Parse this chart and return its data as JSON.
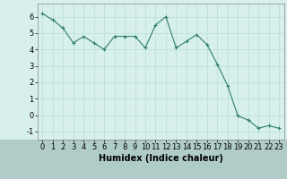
{
  "x": [
    0,
    1,
    2,
    3,
    4,
    5,
    6,
    7,
    8,
    9,
    10,
    11,
    12,
    13,
    14,
    15,
    16,
    17,
    18,
    19,
    20,
    21,
    22,
    23
  ],
  "y": [
    6.2,
    5.8,
    5.3,
    4.4,
    4.8,
    4.4,
    4.0,
    4.8,
    4.8,
    4.8,
    4.1,
    5.5,
    6.0,
    4.1,
    4.5,
    4.9,
    4.3,
    3.1,
    1.8,
    -0.05,
    -0.3,
    -0.8,
    -0.65,
    -0.8
  ],
  "line_color": "#2e7d6e",
  "marker": "+",
  "marker_size": 3,
  "bg_color": "#d8f0ec",
  "grid_color": "#b8ddd8",
  "xlabel": "Humidex (Indice chaleur)",
  "xlabel_fontsize": 7,
  "tick_fontsize": 6,
  "ylim": [
    -1.5,
    6.8
  ],
  "xlim": [
    -0.5,
    23.5
  ],
  "yticks": [
    -1,
    0,
    1,
    2,
    3,
    4,
    5,
    6
  ],
  "xticks": [
    0,
    1,
    2,
    3,
    4,
    5,
    6,
    7,
    8,
    9,
    10,
    11,
    12,
    13,
    14,
    15,
    16,
    17,
    18,
    19,
    20,
    21,
    22,
    23
  ],
  "xlabel_bg": "#b0ccc8"
}
